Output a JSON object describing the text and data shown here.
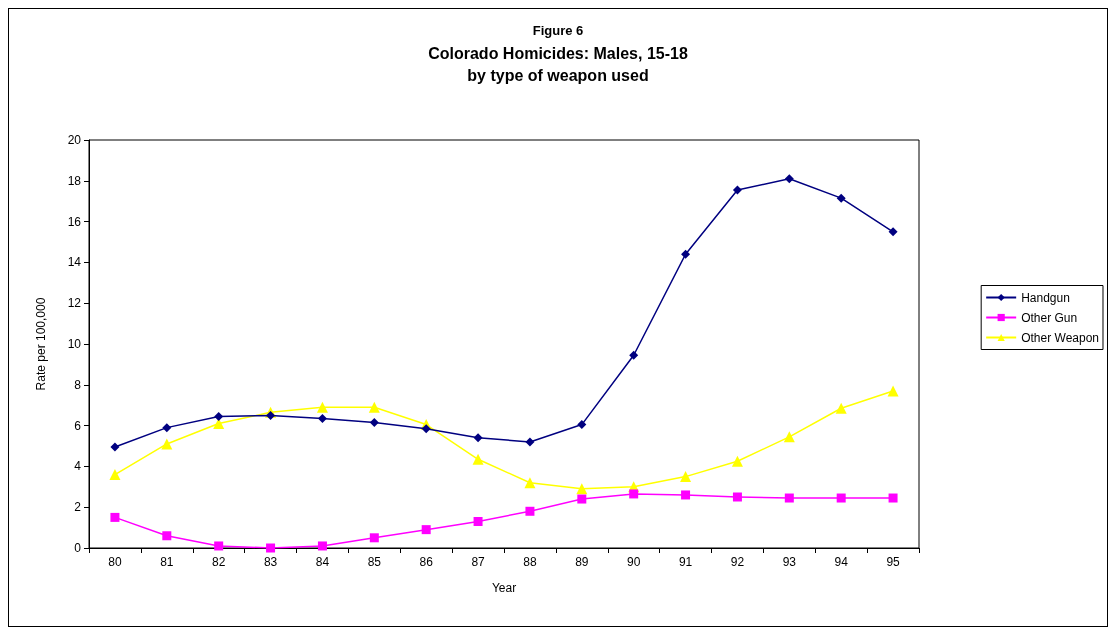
{
  "chart_data": {
    "type": "line",
    "title": "Figure 6",
    "subtitle": "Colorado Homicides: Males, 15-18\nby type of weapon used",
    "xlabel": "Year",
    "ylabel": "Rate per 100,000",
    "categories": [
      "80",
      "81",
      "82",
      "83",
      "84",
      "85",
      "86",
      "87",
      "88",
      "89",
      "90",
      "91",
      "92",
      "93",
      "94",
      "95"
    ],
    "series": [
      {
        "name": "Handgun",
        "color": "#000080",
        "marker": "diamond",
        "values": [
          4.95,
          5.9,
          6.45,
          6.5,
          6.35,
          6.15,
          5.85,
          5.4,
          5.2,
          6.05,
          9.45,
          14.4,
          17.55,
          18.1,
          17.15,
          15.5
        ]
      },
      {
        "name": "Other Gun",
        "color": "#ff00ff",
        "marker": "square",
        "values": [
          1.5,
          0.6,
          0.1,
          0,
          0.1,
          0.5,
          0.9,
          1.3,
          1.8,
          2.4,
          2.65,
          2.6,
          2.5,
          2.45,
          2.45,
          2.45
        ]
      },
      {
        "name": "Other Weapon",
        "color": "#ffff00",
        "marker": "triangle",
        "values": [
          3.6,
          5.1,
          6.1,
          6.65,
          6.9,
          6.9,
          6.05,
          4.35,
          3.2,
          2.9,
          3.0,
          3.5,
          4.25,
          5.45,
          6.85,
          7.7
        ]
      }
    ],
    "ylim": [
      0,
      20
    ],
    "yticks": [
      0,
      2,
      4,
      6,
      8,
      10,
      12,
      14,
      16,
      18,
      20
    ],
    "grid": false,
    "legend": "right",
    "line_style": "solid"
  }
}
